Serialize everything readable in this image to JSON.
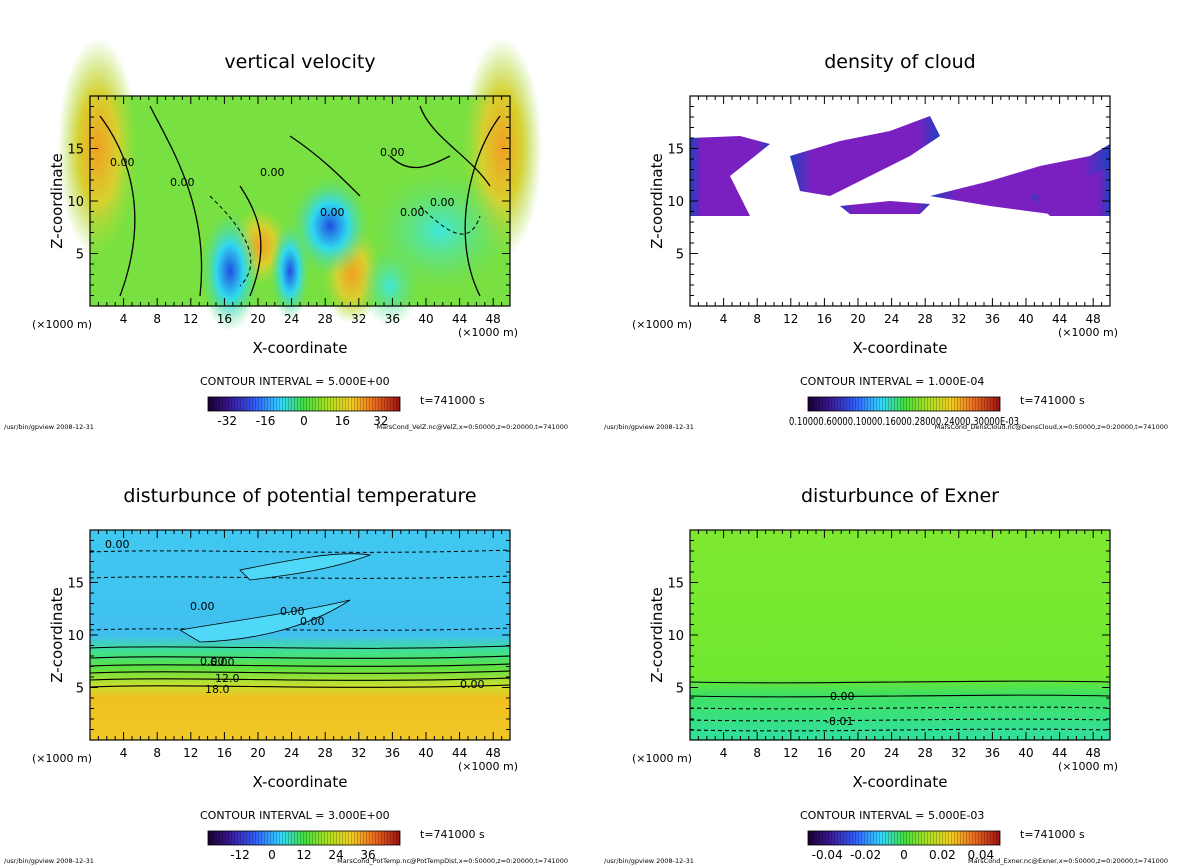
{
  "chart_data": [
    {
      "type": "heatmap",
      "title": "vertical velocity",
      "xlabel": "X-coordinate",
      "ylabel": "Z-coordinate",
      "xunit_left": "(×1000 m)",
      "xunit_right": "(×1000 m)",
      "xticks": [
        4,
        8,
        12,
        16,
        20,
        24,
        28,
        32,
        36,
        40,
        44,
        48
      ],
      "yticks": [
        5,
        10,
        15
      ],
      "xlim": [
        0,
        50
      ],
      "ylim": [
        0,
        20
      ],
      "contour_interval": "CONTOUR INTERVAL = 5.000E+00",
      "time": "t=741000 s",
      "colorbar_ticks": [
        "-32",
        "-16",
        "0",
        "16",
        "32"
      ],
      "colorbar_range": [
        -40,
        40
      ],
      "contour_labels": [
        "0.00",
        "0.00",
        "0.00",
        "0.00",
        "0.00",
        "0.00",
        "0.00"
      ],
      "footer_left": "/usr/bin/gpview  2008-12-31",
      "footer_right": "MarsCond_VelZ.nc@VelZ,x=0:50000,z=0:20000,t=741000"
    },
    {
      "type": "heatmap",
      "title": "density of cloud",
      "xlabel": "X-coordinate",
      "ylabel": "Z-coordinate",
      "xunit_left": "(×1000 m)",
      "xunit_right": "(×1000 m)",
      "xticks": [
        4,
        8,
        12,
        16,
        20,
        24,
        28,
        32,
        36,
        40,
        44,
        48
      ],
      "yticks": [
        5,
        10,
        15
      ],
      "xlim": [
        0,
        50
      ],
      "ylim": [
        0,
        20
      ],
      "contour_interval": "CONTOUR INTERVAL = 1.000E-04",
      "time": "t=741000 s",
      "colorbar_ticks": [
        "0.10000.60000.10000.16000.28000.24000.30000E-03"
      ],
      "contour_labels": [],
      "footer_left": "/usr/bin/gpview  2008-12-31",
      "footer_right": "MarsCond_DensCloud.nc@DensCloud,x=0:50000,z=0:20000,t=741000"
    },
    {
      "type": "heatmap",
      "title": "disturbunce of potential temperature",
      "xlabel": "X-coordinate",
      "ylabel": "Z-coordinate",
      "xunit_left": "(×1000 m)",
      "xunit_right": "(×1000 m)",
      "xticks": [
        4,
        8,
        12,
        16,
        20,
        24,
        28,
        32,
        36,
        40,
        44,
        48
      ],
      "yticks": [
        5,
        10,
        15
      ],
      "xlim": [
        0,
        50
      ],
      "ylim": [
        0,
        20
      ],
      "contour_interval": "CONTOUR INTERVAL = 3.000E+00",
      "time": "t=741000 s",
      "colorbar_ticks": [
        "-12",
        "0",
        "12",
        "24",
        "36"
      ],
      "colorbar_range": [
        -24,
        48
      ],
      "contour_labels": [
        "0.00",
        "0.00",
        "0.00",
        "0.00",
        "0.00",
        "0.00",
        "6.00",
        "12.0",
        "18.0"
      ],
      "footer_left": "/usr/bin/gpview  2008-12-31",
      "footer_right": "MarsCond_PotTemp.nc@PotTempDist,x=0:50000,z=0:20000,t=741000"
    },
    {
      "type": "heatmap",
      "title": "disturbunce of Exner",
      "xlabel": "X-coordinate",
      "ylabel": "Z-coordinate",
      "xunit_left": "(×1000 m)",
      "xunit_right": "(×1000 m)",
      "xticks": [
        4,
        8,
        12,
        16,
        20,
        24,
        28,
        32,
        36,
        40,
        44,
        48
      ],
      "yticks": [
        5,
        10,
        15
      ],
      "xlim": [
        0,
        50
      ],
      "ylim": [
        0,
        20
      ],
      "contour_interval": "CONTOUR INTERVAL = 5.000E-03",
      "time": "t=741000 s",
      "colorbar_ticks": [
        "-0.04",
        "-0.02",
        "0",
        "0.02",
        "0.04"
      ],
      "colorbar_range": [
        -0.05,
        0.05
      ],
      "contour_labels": [
        "0.00",
        "-0.01"
      ],
      "footer_left": "/usr/bin/gpview  2008-12-31",
      "footer_right": "MarsCond_Exner.nc@Exner,x=0:50000,z=0:20000,t=741000"
    }
  ]
}
